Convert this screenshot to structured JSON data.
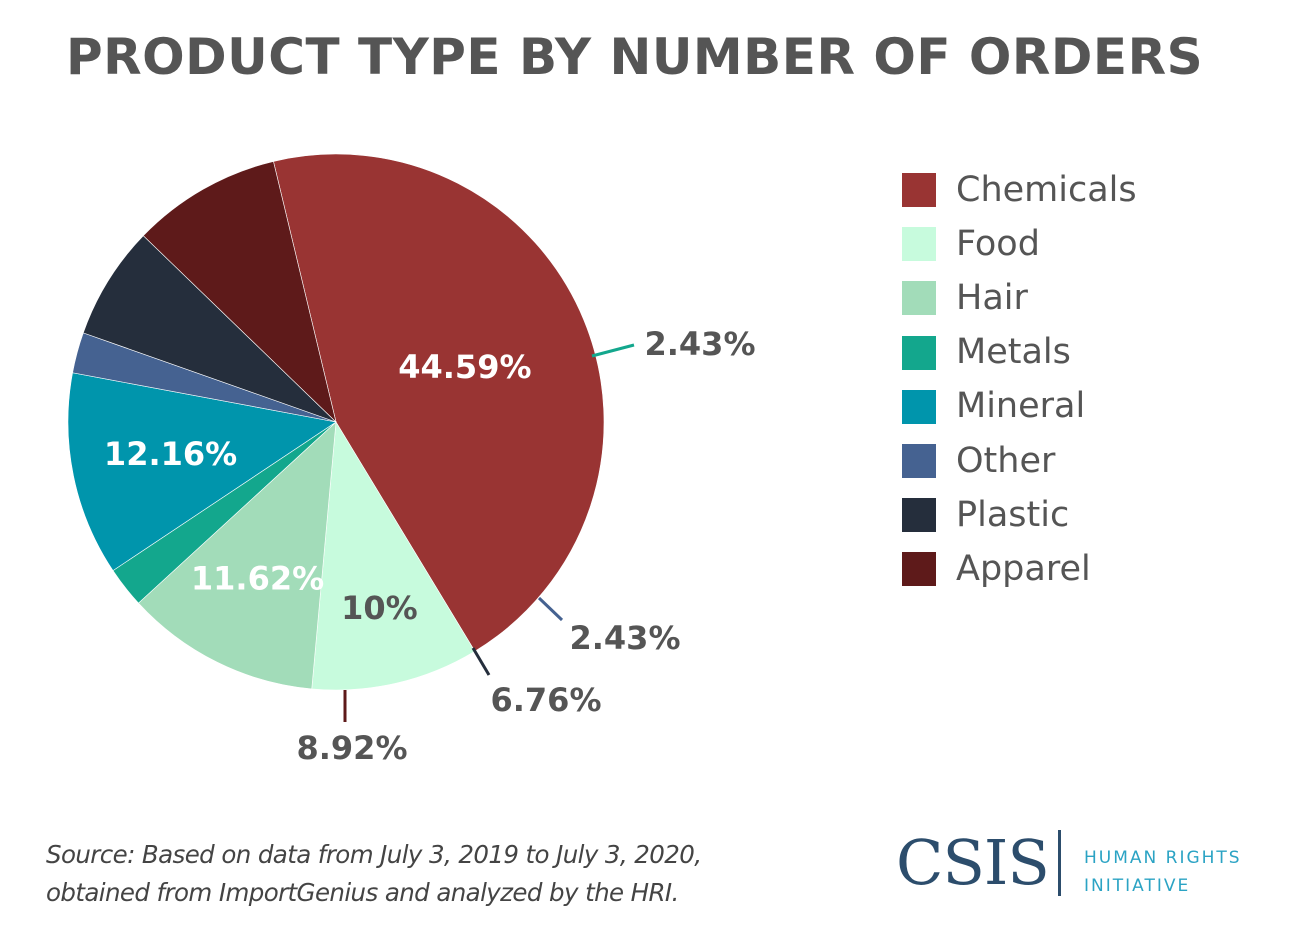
{
  "chart_data": {
    "type": "pie",
    "title": "PRODUCT TYPE BY NUMBER OF ORDERS",
    "legend_position": "right",
    "slices": [
      {
        "name": "Chemicals",
        "value": 44.59,
        "label": "44.59%",
        "color": "#993433"
      },
      {
        "name": "Food",
        "value": 10,
        "label": "10%",
        "color": "#c7fbdd"
      },
      {
        "name": "Hair",
        "value": 11.62,
        "label": "11.62%",
        "color": "#a2dcb9"
      },
      {
        "name": "Metals",
        "value": 2.43,
        "label": "2.43%",
        "color": "#13a78d"
      },
      {
        "name": "Mineral",
        "value": 12.16,
        "label": "12.16%",
        "color": "#0095ac"
      },
      {
        "name": "Other",
        "value": 2.43,
        "label": "2.43%",
        "color": "#456291"
      },
      {
        "name": "Plastic",
        "value": 6.76,
        "label": "6.76%",
        "color": "#252e3c"
      },
      {
        "name": "Apparel",
        "value": 8.92,
        "label": "8.92%",
        "color": "#5e1a1a"
      }
    ]
  },
  "source": {
    "line1": "Source: Based on data from July 3, 2019 to July 3, 2020,",
    "line2": "obtained from ImportGenius and analyzed by the HRI."
  },
  "brand": {
    "logo": "CSIS",
    "line1": "HUMAN RIGHTS",
    "line2": "INITIATIVE"
  }
}
